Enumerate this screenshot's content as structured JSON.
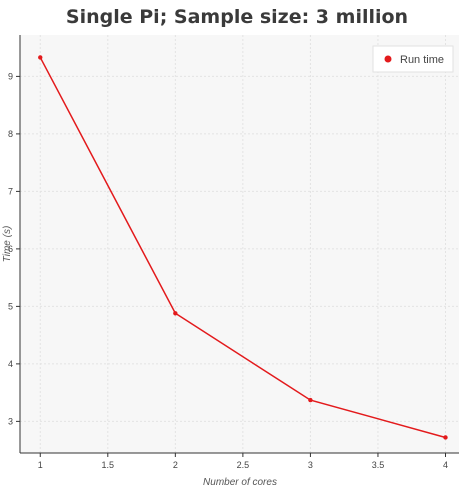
{
  "chart_data": {
    "type": "line",
    "title": "Single Pi; Sample size: 3 million",
    "xlabel": "Number of cores",
    "ylabel": "Time (s)",
    "x": [
      1,
      2,
      3,
      4
    ],
    "series": [
      {
        "name": "Run time",
        "values": [
          9.33,
          4.88,
          3.37,
          2.72
        ],
        "color": "#e31a1c"
      }
    ],
    "xlim": [
      0.85,
      4.1
    ],
    "ylim": [
      2.45,
      9.72
    ],
    "xticks": [
      1,
      1.5,
      2,
      2.5,
      3,
      3.5,
      4
    ],
    "xtick_labels": [
      "1",
      "1.5",
      "2",
      "2.5",
      "3",
      "3.5",
      "4"
    ],
    "yticks": [
      3,
      4,
      5,
      6,
      7,
      8,
      9
    ],
    "ytick_labels": [
      "3",
      "4",
      "5",
      "6",
      "7",
      "8",
      "9"
    ],
    "grid": true,
    "legend_position": "top-right",
    "plot_background": "#f7f7f7"
  }
}
